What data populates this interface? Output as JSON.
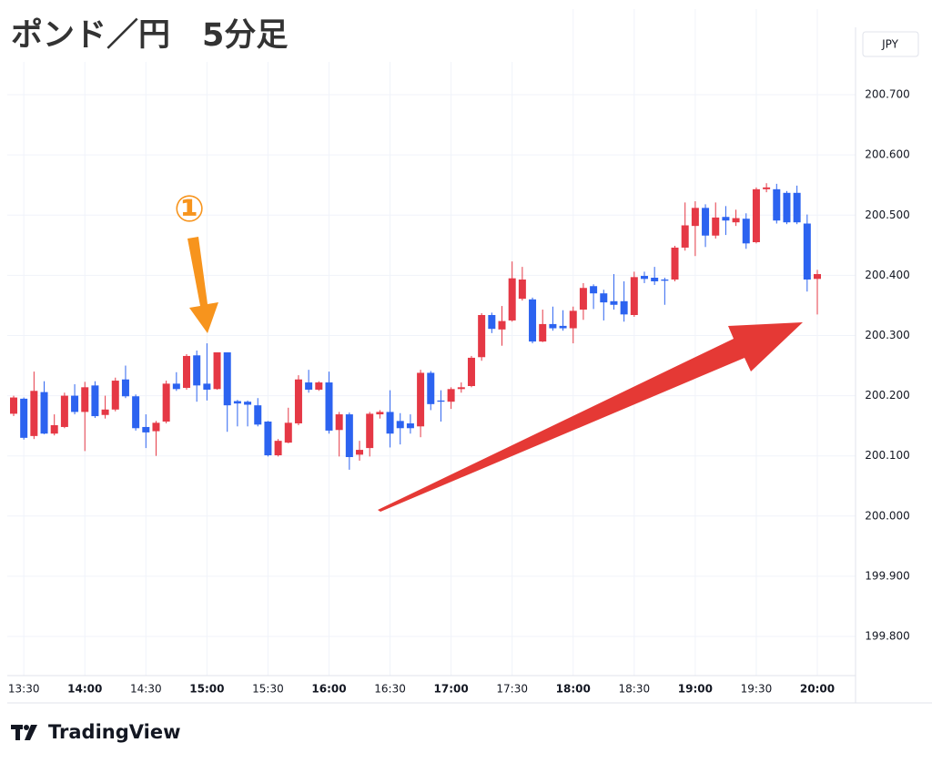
{
  "chart_data": {
    "type": "candlestick",
    "title": "ポンド／円　5分足",
    "currency": "JPY",
    "annotation": "①",
    "brand": "TradingView",
    "up_color": "#e53845",
    "down_color": "#2c63f0",
    "grid": true,
    "ylim": [
      199.738,
      200.812
    ],
    "yticks": [
      {
        "value": 199.8,
        "label": "199.800"
      },
      {
        "value": 199.9,
        "label": "199.900"
      },
      {
        "value": 200.0,
        "label": "200.000"
      },
      {
        "value": 200.1,
        "label": "200.100"
      },
      {
        "value": 200.2,
        "label": "200.200"
      },
      {
        "value": 200.3,
        "label": "200.300"
      },
      {
        "value": 200.4,
        "label": "200.400"
      },
      {
        "value": 200.5,
        "label": "200.500"
      },
      {
        "value": 200.6,
        "label": "200.600"
      },
      {
        "value": 200.7,
        "label": "200.700"
      }
    ],
    "categories": [
      null,
      "13:30",
      null,
      null,
      null,
      null,
      null,
      "14:00",
      null,
      null,
      null,
      null,
      null,
      "14:30",
      null,
      null,
      null,
      null,
      null,
      "15:00",
      null,
      null,
      null,
      null,
      null,
      "15:30",
      null,
      null,
      null,
      null,
      null,
      "16:00",
      null,
      null,
      null,
      null,
      null,
      "16:30",
      null,
      null,
      null,
      null,
      null,
      "17:00",
      null,
      null,
      null,
      null,
      null,
      "17:30",
      null,
      null,
      null,
      null,
      null,
      "18:00",
      null,
      null,
      null,
      null,
      null,
      "18:30",
      null,
      null,
      null,
      null,
      null,
      "19:00",
      null,
      null,
      null,
      null,
      null,
      "19:30",
      null,
      null,
      null,
      null,
      null,
      "20:00"
    ],
    "open": [
      200.17,
      200.195,
      200.133,
      200.206,
      200.137,
      200.148,
      200.2,
      200.173,
      200.217,
      200.168,
      200.177,
      200.227,
      200.199,
      200.148,
      200.141,
      200.157,
      200.22,
      200.213,
      200.267,
      200.22,
      200.211,
      200.272,
      200.191,
      200.19,
      200.184,
      200.157,
      200.101,
      200.122,
      200.154,
      200.222,
      200.21,
      200.222,
      200.143,
      200.169,
      200.102,
      200.113,
      200.169,
      200.173,
      200.158,
      200.154,
      200.149,
      200.238,
      200.192,
      200.19,
      200.211,
      200.216,
      200.264,
      200.334,
      200.31,
      200.325,
      200.361,
      200.36,
      200.29,
      200.319,
      200.316,
      200.312,
      200.343,
      200.382,
      200.37,
      200.357,
      200.357,
      200.334,
      200.399,
      200.396,
      200.393,
      200.393,
      200.446,
      200.482,
      200.512,
      200.466,
      200.497,
      200.488,
      200.494,
      200.455,
      200.543,
      200.543,
      200.537,
      200.537,
      200.486,
      200.394
    ],
    "high": [
      200.2,
      200.197,
      200.24,
      200.224,
      200.169,
      200.205,
      200.219,
      200.223,
      200.224,
      200.2,
      200.23,
      200.25,
      200.202,
      200.169,
      200.158,
      200.225,
      200.239,
      200.269,
      200.275,
      200.287,
      200.272,
      200.272,
      200.193,
      200.192,
      200.196,
      200.158,
      200.128,
      200.18,
      200.234,
      200.243,
      200.224,
      200.24,
      200.173,
      200.172,
      200.125,
      200.173,
      200.176,
      200.209,
      200.171,
      200.169,
      200.243,
      200.241,
      200.209,
      200.214,
      200.222,
      200.266,
      200.337,
      200.338,
      200.349,
      200.423,
      200.414,
      200.363,
      200.343,
      200.348,
      200.342,
      200.348,
      200.387,
      200.385,
      200.376,
      200.402,
      200.39,
      200.406,
      200.406,
      200.414,
      200.396,
      200.449,
      200.521,
      200.523,
      200.518,
      200.521,
      200.515,
      200.509,
      200.503,
      200.546,
      200.553,
      200.552,
      200.54,
      200.549,
      200.501,
      200.409
    ],
    "low": [
      200.166,
      200.127,
      200.128,
      200.136,
      200.134,
      200.146,
      200.169,
      200.108,
      200.163,
      200.162,
      200.174,
      200.196,
      200.142,
      200.113,
      200.1,
      200.154,
      200.208,
      200.21,
      200.19,
      200.192,
      200.21,
      200.14,
      200.149,
      200.149,
      200.149,
      200.099,
      200.099,
      200.121,
      200.151,
      200.205,
      200.208,
      200.137,
      200.099,
      200.077,
      200.092,
      200.099,
      200.162,
      200.114,
      200.119,
      200.137,
      200.131,
      200.176,
      200.157,
      200.178,
      200.205,
      200.214,
      200.258,
      200.304,
      200.283,
      200.323,
      200.358,
      200.287,
      200.289,
      200.308,
      200.308,
      200.287,
      200.326,
      200.344,
      200.325,
      200.343,
      200.323,
      200.331,
      200.387,
      200.384,
      200.351,
      200.39,
      200.441,
      200.432,
      200.447,
      200.461,
      200.467,
      200.482,
      200.444,
      200.453,
      200.538,
      200.486,
      200.485,
      200.485,
      200.373,
      200.335
    ],
    "close": [
      200.197,
      200.13,
      200.208,
      200.137,
      200.151,
      200.2,
      200.173,
      200.214,
      200.166,
      200.177,
      200.225,
      200.199,
      200.146,
      200.139,
      200.155,
      200.22,
      200.211,
      200.266,
      200.217,
      200.21,
      200.272,
      200.184,
      200.187,
      200.185,
      200.152,
      200.101,
      200.125,
      200.155,
      200.227,
      200.21,
      200.222,
      200.142,
      200.169,
      200.098,
      200.11,
      200.17,
      200.173,
      200.137,
      200.146,
      200.146,
      200.238,
      200.186,
      200.19,
      200.211,
      200.214,
      200.263,
      200.334,
      200.311,
      200.324,
      200.395,
      200.393,
      200.29,
      200.319,
      200.312,
      200.312,
      200.341,
      200.379,
      200.37,
      200.355,
      200.351,
      200.335,
      200.397,
      200.394,
      200.39,
      200.391,
      200.446,
      200.483,
      200.512,
      200.466,
      200.496,
      200.491,
      200.495,
      200.453,
      200.543,
      200.546,
      200.491,
      200.488,
      200.488,
      200.393,
      200.402
    ]
  }
}
